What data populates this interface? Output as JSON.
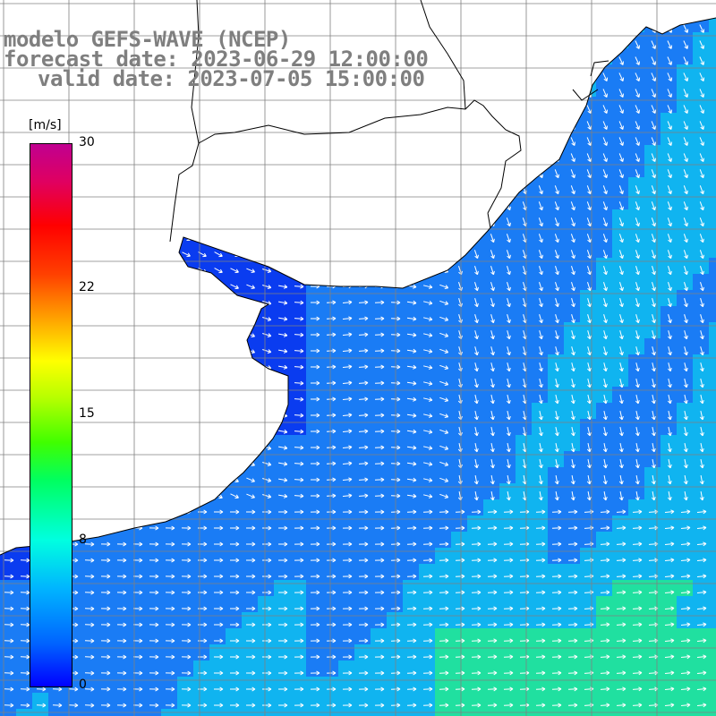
{
  "title": {
    "line1": "modelo GEFS-WAVE (NCEP)",
    "line2": "forecast date: 2023-06-29 12:00:00",
    "line3": "valid date: 2023-07-05 15:00:00"
  },
  "colorbar": {
    "unit": "[m/s]",
    "ticks": [
      "30",
      "22",
      "15",
      "8",
      "0"
    ],
    "tick_values": [
      30,
      22,
      15,
      8,
      0
    ],
    "min": 0,
    "max": 30,
    "colors": [
      "#0000ff",
      "#0064ff",
      "#00b4ff",
      "#00ffe0",
      "#00ff60",
      "#40ff00",
      "#b4ff00",
      "#ffff00",
      "#ffa000",
      "#ff4000",
      "#ff0000",
      "#e00060",
      "#c00090"
    ]
  },
  "map": {
    "land_color": "#ffffff",
    "grid_color": "#808080",
    "ocean_colors": {
      "calm": "#0a3cf0",
      "mid": "#1a7cf5",
      "high": "#10b4f0",
      "peak": "#20e0a0"
    },
    "grid_on": true
  }
}
